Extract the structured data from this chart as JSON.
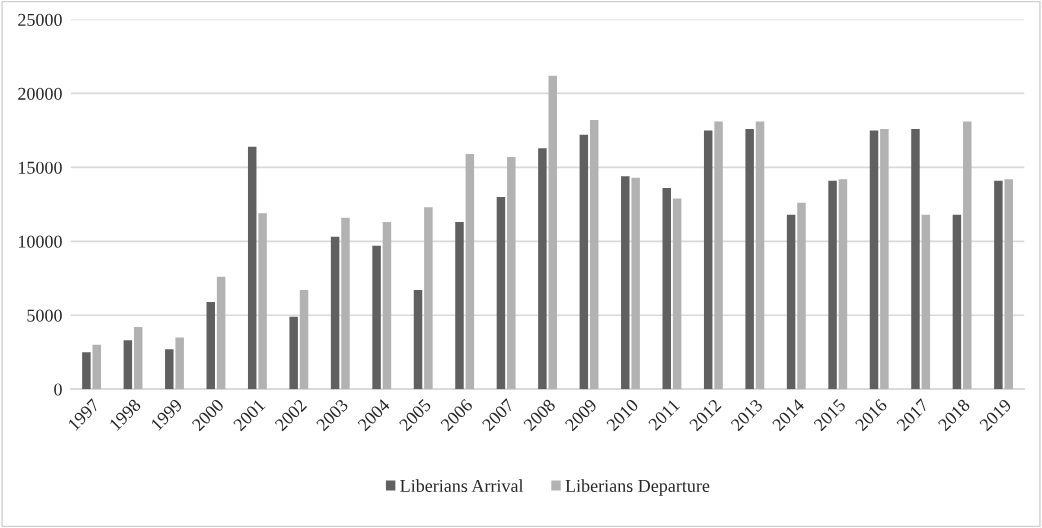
{
  "chart_data": {
    "type": "bar",
    "categories": [
      "1997",
      "1998",
      "1999",
      "2000",
      "2001",
      "2002",
      "2003",
      "2004",
      "2005",
      "2006",
      "2007",
      "2008",
      "2009",
      "2010",
      "2011",
      "2012",
      "2013",
      "2014",
      "2015",
      "2016",
      "2017",
      "2018",
      "2019"
    ],
    "series": [
      {
        "name": "Liberians Arrival",
        "color": "#606060",
        "values": [
          2500,
          3300,
          2700,
          5900,
          16400,
          4900,
          10300,
          9700,
          6700,
          11300,
          13000,
          16300,
          17200,
          14400,
          13600,
          17500,
          17600,
          11800,
          14100,
          17500,
          17600,
          11800,
          14100
        ]
      },
      {
        "name": "Liberians Departure",
        "color": "#b2b2b2",
        "values": [
          3000,
          4200,
          3500,
          7600,
          11900,
          6700,
          11600,
          11300,
          12300,
          15900,
          15700,
          21200,
          18200,
          14300,
          12900,
          18100,
          18100,
          12600,
          14200,
          17600,
          11800,
          18100,
          14200
        ]
      }
    ],
    "ylim": [
      0,
      25000
    ],
    "yticks": [
      0,
      5000,
      10000,
      15000,
      20000,
      25000
    ],
    "grid": "y",
    "legend": "bottom"
  }
}
